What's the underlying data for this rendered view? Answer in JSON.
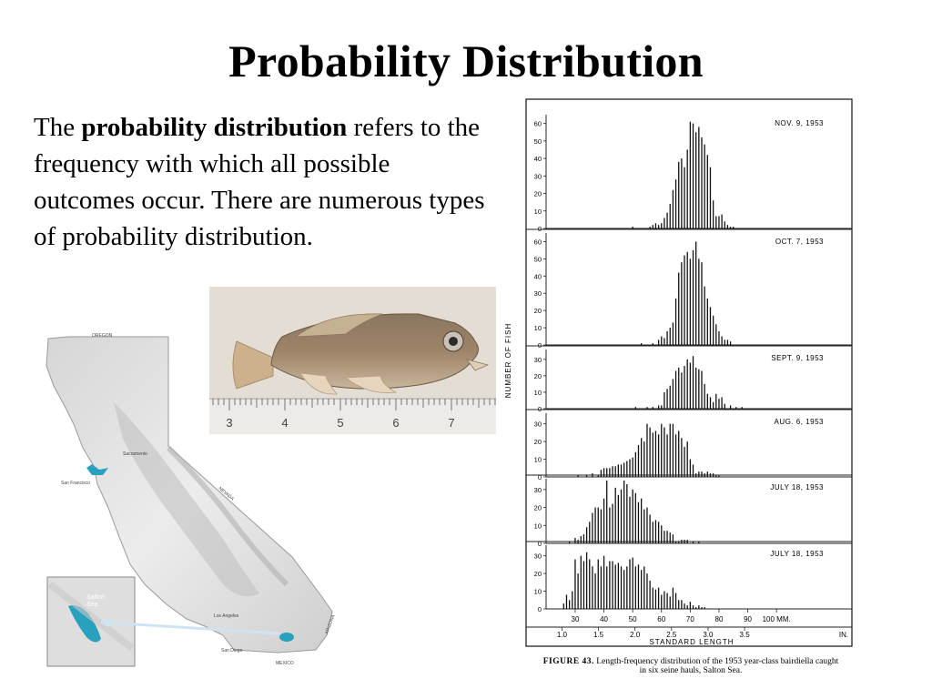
{
  "slide": {
    "title": "Probability Distribution",
    "body": {
      "before": "The ",
      "bold": "probability distribution",
      "after": " refers to the frequency with which all possible outcomes occur. There are numerous types of probability distribution."
    }
  },
  "fish_photo": {
    "ruler_labels": [
      "3",
      "4",
      "5",
      "6",
      "7"
    ]
  },
  "map": {
    "labels": {
      "oregon": "OREGON",
      "nevada": "NEVADA",
      "arizona": "ARIZONA",
      "mexico": "MEXICO",
      "sacramento": "Sacramento",
      "san_francisco": "San Francisco",
      "los_angeles": "Los Angeles",
      "san_diego": "San Diego",
      "inset_salton": "Salton",
      "inset_sea": "Sea"
    },
    "colors": {
      "water": "#2aa0bf",
      "land": "#e9e9e9"
    }
  },
  "figure": {
    "ylabel": "NUMBER OF FISH",
    "xlabel": "STANDARD LENGTH",
    "mm_labels": [
      "30",
      "40",
      "50",
      "60",
      "70",
      "80",
      "90",
      "100 MM."
    ],
    "in_labels": [
      "1.0",
      "1.5",
      "2.0",
      "2.5",
      "3.0",
      "3.5",
      "IN."
    ],
    "caption_label": "FIGURE 43.",
    "caption_text_1": "Length-frequency distribution of the 1953 year-class bairdiella caught",
    "caption_text_2": "in six seine hauls, Salton Sea."
  },
  "chart_data": [
    {
      "type": "bar",
      "title": "NOV. 9, 1953",
      "xlabel": "STANDARD LENGTH",
      "ylabel": "NUMBER OF FISH",
      "yticks": [
        "0",
        "10",
        "20",
        "30",
        "40",
        "50",
        "60"
      ],
      "ylim": [
        0,
        65
      ],
      "x": [
        50,
        56,
        57,
        58,
        59,
        60,
        61,
        62,
        63,
        64,
        65,
        66,
        67,
        68,
        69,
        70,
        71,
        72,
        73,
        74,
        75,
        76,
        77,
        78,
        79,
        80,
        81,
        82,
        83,
        84,
        85
      ],
      "values": [
        1,
        1,
        2,
        3,
        2,
        3,
        6,
        9,
        14,
        22,
        28,
        38,
        40,
        35,
        45,
        61,
        60,
        55,
        58,
        52,
        48,
        42,
        35,
        16,
        7,
        7,
        8,
        4,
        2,
        1,
        1
      ]
    },
    {
      "type": "bar",
      "title": "OCT. 7, 1953",
      "xlabel": "STANDARD LENGTH",
      "ylabel": "NUMBER OF FISH",
      "yticks": [
        "0",
        "10",
        "20",
        "30",
        "40",
        "50",
        "60"
      ],
      "ylim": [
        0,
        65
      ],
      "x": [
        53,
        57,
        59,
        60,
        61,
        62,
        63,
        64,
        65,
        66,
        67,
        68,
        69,
        70,
        71,
        72,
        73,
        74,
        75,
        76,
        77,
        78,
        79,
        80,
        81,
        82,
        83,
        84
      ],
      "values": [
        1,
        1,
        3,
        5,
        4,
        8,
        10,
        13,
        27,
        42,
        48,
        52,
        54,
        50,
        55,
        60,
        50,
        48,
        34,
        27,
        22,
        17,
        12,
        8,
        5,
        3,
        3,
        2
      ]
    },
    {
      "type": "bar",
      "title": "SEPT. 9, 1953",
      "xlabel": "STANDARD LENGTH",
      "ylabel": "NUMBER OF FISH",
      "yticks": [
        "0",
        "10",
        "20",
        "30"
      ],
      "ylim": [
        0,
        36
      ],
      "x": [
        51,
        55,
        57,
        59,
        60,
        61,
        62,
        63,
        64,
        65,
        66,
        67,
        68,
        69,
        70,
        71,
        72,
        73,
        74,
        75,
        76,
        77,
        78,
        79,
        80,
        81,
        82,
        84,
        86,
        88
      ],
      "values": [
        1,
        1,
        1,
        2,
        2,
        10,
        12,
        14,
        18,
        23,
        25,
        22,
        26,
        30,
        28,
        32,
        25,
        24,
        23,
        15,
        9,
        7,
        4,
        9,
        6,
        7,
        3,
        2,
        1,
        1
      ]
    },
    {
      "type": "bar",
      "title": "AUG. 6, 1953",
      "xlabel": "STANDARD LENGTH",
      "ylabel": "NUMBER OF FISH",
      "yticks": [
        "0",
        "10",
        "20",
        "30"
      ],
      "ylim": [
        0,
        36
      ],
      "x": [
        31,
        34,
        36,
        38,
        39,
        40,
        41,
        42,
        43,
        44,
        45,
        46,
        47,
        48,
        49,
        50,
        51,
        52,
        53,
        54,
        55,
        56,
        57,
        58,
        59,
        60,
        61,
        62,
        63,
        64,
        65,
        66,
        67,
        68,
        69,
        70,
        71,
        72,
        73,
        74,
        75,
        76,
        77,
        78,
        79,
        80
      ],
      "values": [
        1,
        1,
        2,
        1,
        4,
        5,
        5,
        5,
        6,
        6,
        7,
        7,
        8,
        9,
        10,
        11,
        14,
        18,
        22,
        20,
        30,
        28,
        25,
        26,
        24,
        30,
        28,
        24,
        30,
        30,
        24,
        26,
        22,
        17,
        20,
        10,
        7,
        2,
        3,
        3,
        2,
        3,
        2,
        2,
        1,
        1
      ]
    },
    {
      "type": "bar",
      "title": "JULY 18, 1953",
      "xlabel": "STANDARD LENGTH",
      "ylabel": "NUMBER OF FISH",
      "yticks": [
        "0",
        "10",
        "20",
        "30"
      ],
      "ylim": [
        0,
        36
      ],
      "x": [
        28,
        30,
        31,
        32,
        33,
        34,
        35,
        36,
        37,
        38,
        39,
        40,
        41,
        42,
        43,
        44,
        45,
        46,
        47,
        48,
        49,
        50,
        51,
        52,
        53,
        54,
        55,
        56,
        57,
        58,
        59,
        60,
        61,
        62,
        63,
        64,
        65,
        66,
        67,
        68,
        69,
        71,
        73
      ],
      "values": [
        1,
        3,
        2,
        4,
        5,
        9,
        12,
        17,
        20,
        20,
        19,
        25,
        35,
        20,
        22,
        31,
        27,
        30,
        35,
        33,
        26,
        30,
        28,
        23,
        25,
        19,
        20,
        16,
        12,
        13,
        12,
        10,
        7,
        7,
        6,
        5,
        1,
        1,
        2,
        2,
        2,
        1,
        1
      ]
    },
    {
      "type": "bar",
      "title": "JULY 18, 1953",
      "xlabel": "STANDARD LENGTH",
      "ylabel": "NUMBER OF FISH",
      "yticks": [
        "0",
        "10",
        "20",
        "30"
      ],
      "ylim": [
        0,
        36
      ],
      "x": [
        26,
        27,
        28,
        29,
        30,
        31,
        32,
        33,
        34,
        35,
        36,
        37,
        38,
        39,
        40,
        41,
        42,
        43,
        44,
        45,
        46,
        47,
        48,
        49,
        50,
        51,
        52,
        53,
        54,
        55,
        56,
        57,
        58,
        59,
        60,
        61,
        62,
        63,
        64,
        65,
        66,
        67,
        68,
        69,
        70,
        71,
        72,
        73,
        74,
        75
      ],
      "values": [
        3,
        8,
        5,
        10,
        28,
        20,
        30,
        27,
        32,
        28,
        24,
        20,
        28,
        24,
        30,
        24,
        27,
        27,
        25,
        26,
        24,
        22,
        24,
        28,
        29,
        24,
        25,
        22,
        24,
        20,
        16,
        12,
        11,
        12,
        8,
        10,
        9,
        7,
        12,
        9,
        5,
        5,
        3,
        2,
        4,
        2,
        1,
        2,
        1,
        1
      ]
    }
  ]
}
